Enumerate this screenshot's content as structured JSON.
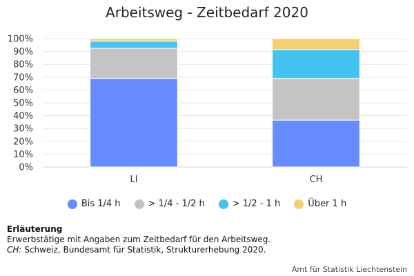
{
  "chart_data": {
    "type": "bar",
    "stacked": true,
    "title": "Arbeitsweg - Zeitbedarf 2020",
    "categories": [
      "LI",
      "CH"
    ],
    "series": [
      {
        "name": "Bis 1/4 h",
        "color": "#668cff",
        "values": [
          69,
          36.5
        ]
      },
      {
        "name": "> 1/4 - 1/2 h",
        "color": "#c4c4c4",
        "values": [
          23.5,
          32.5
        ]
      },
      {
        "name": "> 1/2 - 1 h",
        "color": "#44c2f1",
        "values": [
          5.5,
          22.5
        ]
      },
      {
        "name": "Über 1 h",
        "color": "#f5d06f",
        "values": [
          2,
          8.5
        ]
      }
    ],
    "ylim": [
      0,
      100
    ],
    "yticks": [
      "0%",
      "10%",
      "20%",
      "30%",
      "40%",
      "50%",
      "60%",
      "70%",
      "80%",
      "90%",
      "100%"
    ],
    "grid": true,
    "legend_position": "bottom"
  },
  "notes": {
    "heading": "Erläuterung",
    "line1": "Erwerbstätige mit Angaben zum Zeitbedarf für den Arbeitsweg.",
    "abbr": "CH:",
    "line2": " Schweiz, Bundesamt für Statistik, Strukturerhebung 2020."
  },
  "credit": "Amt für Statistik Liechtenstein"
}
